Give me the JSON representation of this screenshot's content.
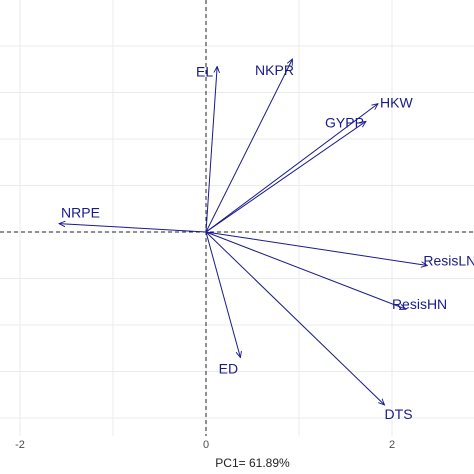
{
  "chart_data": {
    "type": "scatter",
    "subtype": "pca-biplot",
    "xlabel": "PC1= 61.89%",
    "ylabel": "",
    "x_ticks": [
      -2,
      0,
      2
    ],
    "xlim": [
      -2.2,
      2.75
    ],
    "ylim": [
      -2.3,
      2.2
    ],
    "grid": true,
    "reference_lines": {
      "x": 0,
      "y": 0,
      "style": "dashed"
    },
    "arrow_color": "#1a1a8c",
    "vectors": [
      {
        "label": "EL",
        "x": 0.12,
        "y": 1.78
      },
      {
        "label": "NKPR",
        "x": 0.93,
        "y": 1.86
      },
      {
        "label": "HKW",
        "x": 1.85,
        "y": 1.38
      },
      {
        "label": "GYPP",
        "x": 1.72,
        "y": 1.19
      },
      {
        "label": "NRPE",
        "x": -1.58,
        "y": 0.09
      },
      {
        "label": "ResisLN",
        "x": 2.38,
        "y": -0.36
      },
      {
        "label": "ResisHN",
        "x": 2.15,
        "y": -0.83
      },
      {
        "label": "ED",
        "x": 0.37,
        "y": -1.35
      },
      {
        "label": "DTS",
        "x": 1.92,
        "y": -1.86
      }
    ]
  }
}
